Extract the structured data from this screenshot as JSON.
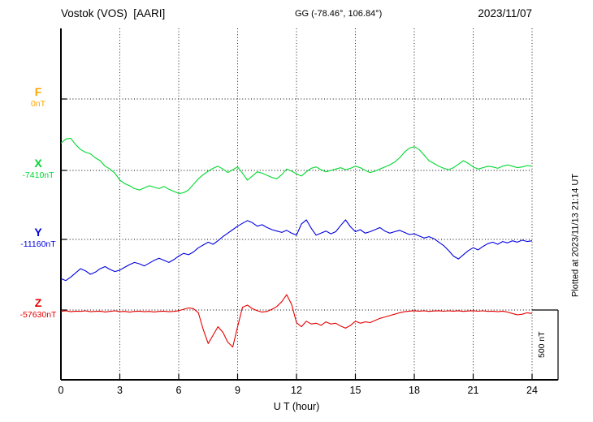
{
  "header": {
    "station_title": "Vostok (VOS)  [AARI]",
    "gg_coords": "GG (-78.46°, 106.84°)",
    "date": "2023/11/07"
  },
  "footer": {
    "xlabel": "U T (hour)"
  },
  "right_side": {
    "plotted_at": "Plotted at 2023/11/13 21:14 UT",
    "scale_bar_label": "500 nT"
  },
  "chart_data": {
    "type": "line",
    "title": "Vostok (VOS) [AARI] magnetogram, 2023/11/07",
    "xlabel": "U T (hour)",
    "ylabel": "",
    "xlim": [
      0,
      24
    ],
    "x_ticks": [
      0,
      3,
      6,
      9,
      12,
      15,
      18,
      21,
      24
    ],
    "x_step_hours": 0.25,
    "scale_bar_nT": 500,
    "grid": "dotted horizontal baselines and vertical 3-hour lines",
    "values_units": "nT offset from each series baseline",
    "series": [
      {
        "name": "F",
        "baseline_label": "0nT",
        "baseline_nT": 0,
        "color": "#ffa500",
        "note": "flat / no visible trace (0 nT)",
        "values": []
      },
      {
        "name": "X",
        "baseline_label": "-7410nT",
        "baseline_nT": -7410,
        "color": "#00d830",
        "values": [
          195,
          225,
          230,
          185,
          150,
          130,
          120,
          90,
          70,
          30,
          10,
          -20,
          -70,
          -95,
          -110,
          -130,
          -140,
          -125,
          -110,
          -120,
          -130,
          -115,
          -135,
          -150,
          -165,
          -160,
          -140,
          -100,
          -60,
          -30,
          -5,
          15,
          30,
          10,
          -15,
          5,
          25,
          -20,
          -70,
          -40,
          -10,
          -20,
          -35,
          -50,
          -60,
          -30,
          10,
          -5,
          -25,
          -40,
          -10,
          15,
          25,
          5,
          -10,
          0,
          10,
          20,
          5,
          15,
          30,
          20,
          0,
          -15,
          -5,
          10,
          25,
          40,
          60,
          90,
          130,
          160,
          170,
          150,
          110,
          70,
          50,
          30,
          15,
          5,
          20,
          45,
          70,
          50,
          25,
          10,
          20,
          30,
          25,
          15,
          30,
          40,
          30,
          20,
          25,
          35,
          30
        ]
      },
      {
        "name": "Y",
        "baseline_label": "-11160nT",
        "baseline_nT": -11160,
        "color": "#0000e0",
        "values": [
          -280,
          -295,
          -270,
          -240,
          -210,
          -225,
          -250,
          -235,
          -210,
          -195,
          -215,
          -230,
          -220,
          -200,
          -180,
          -165,
          -175,
          -190,
          -170,
          -150,
          -135,
          -150,
          -165,
          -145,
          -120,
          -100,
          -110,
          -90,
          -60,
          -40,
          -20,
          -35,
          -10,
          20,
          45,
          70,
          95,
          115,
          135,
          120,
          95,
          105,
          85,
          70,
          60,
          50,
          65,
          45,
          30,
          110,
          140,
          80,
          30,
          45,
          60,
          40,
          55,
          100,
          140,
          90,
          55,
          70,
          45,
          55,
          70,
          85,
          60,
          45,
          55,
          65,
          50,
          35,
          40,
          25,
          10,
          20,
          5,
          -20,
          -45,
          -80,
          -120,
          -140,
          -110,
          -80,
          -60,
          -75,
          -50,
          -30,
          -20,
          -35,
          -15,
          -25,
          -10,
          -20,
          -5,
          -15,
          -10
        ]
      },
      {
        "name": "Z",
        "baseline_label": "-57630nT",
        "baseline_nT": -57630,
        "color": "#e60000",
        "values": [
          -10,
          -5,
          -12,
          -8,
          -10,
          -6,
          -12,
          -10,
          -8,
          -14,
          -10,
          -6,
          -12,
          -10,
          -15,
          -10,
          -8,
          -12,
          -10,
          -14,
          -10,
          -8,
          -12,
          -10,
          -5,
          5,
          15,
          10,
          -20,
          -140,
          -240,
          -180,
          -120,
          -160,
          -230,
          -265,
          -120,
          20,
          35,
          10,
          -5,
          -15,
          -10,
          5,
          25,
          60,
          110,
          40,
          -90,
          -120,
          -80,
          -100,
          -95,
          -110,
          -85,
          -100,
          -95,
          -115,
          -130,
          -110,
          -80,
          -95,
          -85,
          -90,
          -75,
          -60,
          -50,
          -40,
          -30,
          -20,
          -12,
          -8,
          -5,
          -8,
          -6,
          -10,
          -7,
          -5,
          -9,
          -6,
          -8,
          -5,
          -10,
          -7,
          -5,
          -9,
          -6,
          -10,
          -8,
          -12,
          -8,
          -15,
          -25,
          -35,
          -30,
          -20,
          -25
        ]
      }
    ]
  }
}
